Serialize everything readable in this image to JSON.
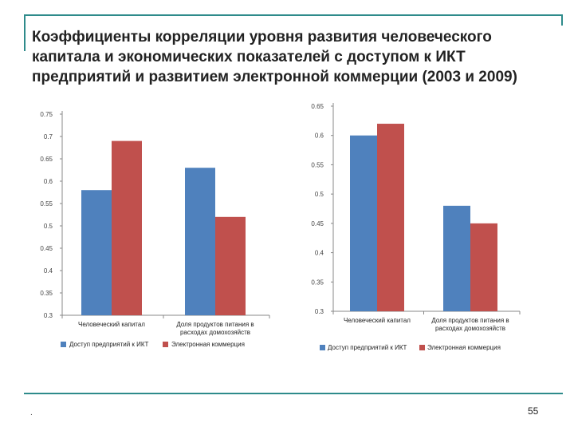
{
  "slide": {
    "title": "Коэффициенты корреляции уровня развития человеческого капитала и экономических показателей с доступом к ИКТ предприятий и развитием электронной коммерции (2003 и 2009)",
    "page_number": "55",
    "footnote": "."
  },
  "colors": {
    "series1": "#4f81bd",
    "series2": "#c0504d",
    "frame": "#2e8b8b",
    "axis": "#888888"
  },
  "chart_data": [
    {
      "type": "bar",
      "title": "",
      "categories": [
        "Человеческий капитал",
        "Доля продуктов питания в расходах домохозяйств"
      ],
      "category_lines": [
        [
          "Человеческий капитал"
        ],
        [
          "Доля продуктов питания в",
          "расходах домохозяйств"
        ]
      ],
      "series": [
        {
          "name": "Доступ предприятий к ИКТ",
          "values": [
            0.58,
            0.63
          ]
        },
        {
          "name": "Электронная коммерция",
          "values": [
            0.69,
            0.52
          ]
        }
      ],
      "yticks": [
        "0.3",
        "0.35",
        "0.4",
        "0.45",
        "0.5",
        "0.55",
        "0.6",
        "0.65",
        "0.7",
        "0.75"
      ],
      "ylim": [
        0.3,
        0.75
      ],
      "xlabel": "",
      "ylabel": "",
      "grid": false,
      "legend": "bottom"
    },
    {
      "type": "bar",
      "title": "",
      "categories": [
        "Человеческий капитал",
        "Доля продуктов питания в расходах домохозяйств"
      ],
      "category_lines": [
        [
          "Человеческий капитал"
        ],
        [
          "Доля продуктов питания в",
          "расходах домохозяйств"
        ]
      ],
      "series": [
        {
          "name": "Доступ предприятий к ИКТ",
          "values": [
            0.6,
            0.48
          ]
        },
        {
          "name": "Электронная коммерция",
          "values": [
            0.62,
            0.45
          ]
        }
      ],
      "yticks": [
        "0.3",
        "0.35",
        "0.4",
        "0.45",
        "0.5",
        "0.55",
        "0.6",
        "0.65"
      ],
      "ylim": [
        0.3,
        0.65
      ],
      "xlabel": "",
      "ylabel": "",
      "grid": false,
      "legend": "bottom"
    }
  ]
}
